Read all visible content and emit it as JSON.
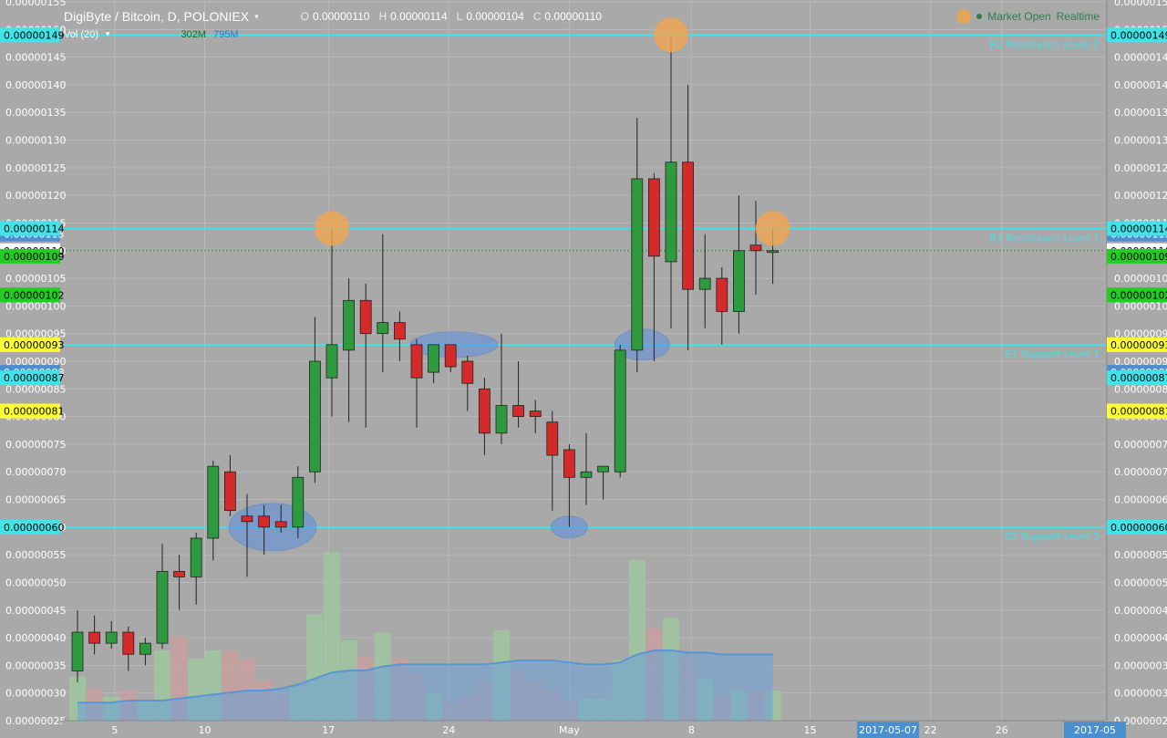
{
  "header": {
    "symbol": "DigiByte / Bitcoin, D, POLONIEX",
    "open_label": "O",
    "open": "0.00000110",
    "high_label": "H",
    "high": "0.00000114",
    "low_label": "L",
    "low": "0.00000104",
    "close_label": "C",
    "close": "0.00000110",
    "volume_label": "Vol (20)",
    "volume_value": "302M",
    "volume_ma": "795M",
    "market_status": "Market Open",
    "realtime": "Realtime"
  },
  "colors": {
    "background": "#a9a9a9",
    "up": "#2d9a3e",
    "down": "#d42a2a",
    "level_line": "#3fe3e8",
    "highlight_orange": "#f0a550",
    "highlight_blue": "#5b8fe0"
  },
  "chart_data": {
    "type": "candlestick",
    "y_range": [
      2.5e-07,
      1.55e-06
    ],
    "y_ticks": [
      "0.00000155",
      "0.00000150",
      "0.00000145",
      "0.00000140",
      "0.00000135",
      "0.00000130",
      "0.00000125",
      "0.00000120",
      "0.00000115",
      "0.00000110",
      "0.00000105",
      "0.00000100",
      "0.00000095",
      "0.00000090",
      "0.00000085",
      "0.00000080",
      "0.00000075",
      "0.00000070",
      "0.00000065",
      "0.00000060",
      "0.00000055",
      "0.00000050",
      "0.00000045",
      "0.00000040",
      "0.00000035",
      "0.00000030",
      "0.00000025"
    ],
    "x_labels": [
      {
        "label": "5",
        "index": 2.2
      },
      {
        "label": "10",
        "index": 7.5
      },
      {
        "label": "17",
        "index": 14.8
      },
      {
        "label": "24",
        "index": 21.9
      },
      {
        "label": "May",
        "index": 29.0
      },
      {
        "label": "8",
        "index": 36.2
      },
      {
        "label": "15",
        "index": 43.2
      },
      {
        "label": "2017-05-07",
        "index": 47.8
      },
      {
        "label": "22",
        "index": 50.3
      },
      {
        "label": "26",
        "index": 54.5
      },
      {
        "label": "2017-05",
        "index": 60.0
      }
    ],
    "candles": [
      {
        "o": 3.4e-07,
        "h": 4.5e-07,
        "l": 3.2e-07,
        "c": 4.1e-07
      },
      {
        "o": 4.1e-07,
        "h": 4.4e-07,
        "l": 3.7e-07,
        "c": 3.9e-07
      },
      {
        "o": 3.9e-07,
        "h": 4.3e-07,
        "l": 3.8e-07,
        "c": 4.1e-07
      },
      {
        "o": 4.1e-07,
        "h": 4.2e-07,
        "l": 3.4e-07,
        "c": 3.7e-07
      },
      {
        "o": 3.7e-07,
        "h": 4e-07,
        "l": 3.5e-07,
        "c": 3.9e-07
      },
      {
        "o": 3.9e-07,
        "h": 5.7e-07,
        "l": 3.8e-07,
        "c": 5.2e-07
      },
      {
        "o": 5.2e-07,
        "h": 5.5e-07,
        "l": 4.5e-07,
        "c": 5.1e-07
      },
      {
        "o": 5.1e-07,
        "h": 5.9e-07,
        "l": 4.6e-07,
        "c": 5.8e-07
      },
      {
        "o": 5.8e-07,
        "h": 7.2e-07,
        "l": 5.4e-07,
        "c": 7.1e-07
      },
      {
        "o": 7e-07,
        "h": 7.3e-07,
        "l": 6.2e-07,
        "c": 6.3e-07
      },
      {
        "o": 6.2e-07,
        "h": 6.6e-07,
        "l": 5.1e-07,
        "c": 6.1e-07
      },
      {
        "o": 6.2e-07,
        "h": 6.4e-07,
        "l": 5.5e-07,
        "c": 6e-07
      },
      {
        "o": 6.1e-07,
        "h": 6.4e-07,
        "l": 5.9e-07,
        "c": 6e-07
      },
      {
        "o": 6e-07,
        "h": 7.1e-07,
        "l": 5.8e-07,
        "c": 6.9e-07
      },
      {
        "o": 7e-07,
        "h": 9.8e-07,
        "l": 6.8e-07,
        "c": 9e-07
      },
      {
        "o": 8.7e-07,
        "h": 1.14e-06,
        "l": 8e-07,
        "c": 9.3e-07
      },
      {
        "o": 9.2e-07,
        "h": 1.05e-06,
        "l": 7.9e-07,
        "c": 1.01e-06
      },
      {
        "o": 1.01e-06,
        "h": 1.04e-06,
        "l": 7.8e-07,
        "c": 9.5e-07
      },
      {
        "o": 9.5e-07,
        "h": 1.13e-06,
        "l": 8.8e-07,
        "c": 9.7e-07
      },
      {
        "o": 9.7e-07,
        "h": 9.9e-07,
        "l": 9e-07,
        "c": 9.4e-07
      },
      {
        "o": 9.3e-07,
        "h": 9.4e-07,
        "l": 7.8e-07,
        "c": 8.7e-07
      },
      {
        "o": 8.8e-07,
        "h": 9.3e-07,
        "l": 8.6e-07,
        "c": 9.3e-07
      },
      {
        "o": 9.3e-07,
        "h": 9.3e-07,
        "l": 8.8e-07,
        "c": 8.9e-07
      },
      {
        "o": 9e-07,
        "h": 9.1e-07,
        "l": 8.1e-07,
        "c": 8.6e-07
      },
      {
        "o": 8.5e-07,
        "h": 8.7e-07,
        "l": 7.3e-07,
        "c": 7.7e-07
      },
      {
        "o": 7.7e-07,
        "h": 9.5e-07,
        "l": 7.5e-07,
        "c": 8.2e-07
      },
      {
        "o": 8.2e-07,
        "h": 9e-07,
        "l": 7.8e-07,
        "c": 8e-07
      },
      {
        "o": 8.1e-07,
        "h": 8.3e-07,
        "l": 7.7e-07,
        "c": 8e-07
      },
      {
        "o": 7.9e-07,
        "h": 8.1e-07,
        "l": 6.3e-07,
        "c": 7.3e-07
      },
      {
        "o": 7.4e-07,
        "h": 7.5e-07,
        "l": 6e-07,
        "c": 6.9e-07
      },
      {
        "o": 6.9e-07,
        "h": 7.7e-07,
        "l": 6.4e-07,
        "c": 7e-07
      },
      {
        "o": 7e-07,
        "h": 7.1e-07,
        "l": 6.5e-07,
        "c": 7.1e-07
      },
      {
        "o": 7e-07,
        "h": 9.3e-07,
        "l": 6.9e-07,
        "c": 9.2e-07
      },
      {
        "o": 9.2e-07,
        "h": 1.34e-06,
        "l": 8.8e-07,
        "c": 1.23e-06
      },
      {
        "o": 1.23e-06,
        "h": 1.24e-06,
        "l": 9e-07,
        "c": 1.09e-06
      },
      {
        "o": 1.08e-06,
        "h": 1.49e-06,
        "l": 9.6e-07,
        "c": 1.26e-06
      },
      {
        "o": 1.26e-06,
        "h": 1.4e-06,
        "l": 9.2e-07,
        "c": 1.03e-06
      },
      {
        "o": 1.03e-06,
        "h": 1.13e-06,
        "l": 9.6e-07,
        "c": 1.05e-06
      },
      {
        "o": 1.05e-06,
        "h": 1.07e-06,
        "l": 9.3e-07,
        "c": 9.9e-07
      },
      {
        "o": 9.9e-07,
        "h": 1.2e-06,
        "l": 9.5e-07,
        "c": 1.1e-06
      },
      {
        "o": 1.11e-06,
        "h": 1.19e-06,
        "l": 1.02e-06,
        "c": 1.1e-06
      },
      {
        "o": 1.1e-06,
        "h": 1.14e-06,
        "l": 1.04e-06,
        "c": 1.1e-06
      }
    ],
    "volume_heights": [
      0.22,
      0.16,
      0.12,
      0.15,
      0.1,
      0.35,
      0.42,
      0.31,
      0.35,
      0.35,
      0.31,
      0.2,
      0.13,
      0.17,
      0.53,
      0.84,
      0.4,
      0.32,
      0.44,
      0.31,
      0.24,
      0.14,
      0.09,
      0.12,
      0.19,
      0.45,
      0.25,
      0.2,
      0.16,
      0.1,
      0.11,
      0.11,
      0.3,
      0.8,
      0.46,
      0.51,
      0.32,
      0.21,
      0.12,
      0.15,
      0.15,
      0.15
    ],
    "volume_ma_heights": [
      0.09,
      0.09,
      0.09,
      0.1,
      0.1,
      0.1,
      0.11,
      0.12,
      0.13,
      0.14,
      0.15,
      0.15,
      0.16,
      0.18,
      0.21,
      0.24,
      0.25,
      0.25,
      0.27,
      0.28,
      0.28,
      0.28,
      0.28,
      0.28,
      0.28,
      0.29,
      0.3,
      0.3,
      0.3,
      0.29,
      0.28,
      0.28,
      0.29,
      0.33,
      0.35,
      0.35,
      0.34,
      0.34,
      0.33,
      0.33,
      0.33,
      0.33
    ],
    "horizontal_levels": [
      {
        "value": 1.49e-06,
        "label": "R2 Resistance Level 2"
      },
      {
        "value": 1.14e-06,
        "label": "R1 Resistance Level 1"
      },
      {
        "value": 9.3e-07,
        "label": "S1 Support Level 1"
      },
      {
        "value": 6e-07,
        "label": "S2 Support Level 2"
      }
    ],
    "current_price_line": 1.1e-06,
    "left_badges": [
      {
        "text": "0.00000149",
        "value": 1.49e-06,
        "bg": "#3fe3e8",
        "fg": "#000000"
      },
      {
        "text": "0.00000113",
        "value": 1.13e-06,
        "bg": "#4a8fd0",
        "fg": "#ffffff"
      },
      {
        "text": "0.00000114",
        "value": 1.14e-06,
        "bg": "#3fe3e8",
        "fg": "#000000"
      },
      {
        "text": "0.00000110",
        "value": 1.1e-06,
        "bg": "#ffffff",
        "fg": "#000000"
      },
      {
        "text": "0.00000109",
        "value": 1.09e-06,
        "bg": "#22cc22",
        "fg": "#000000"
      },
      {
        "text": "0.00000102",
        "value": 1.02e-06,
        "bg": "#22cc22",
        "fg": "#000000"
      },
      {
        "text": "0.00000093",
        "value": 9.3e-07,
        "bg": "#ffff33",
        "fg": "#000000"
      },
      {
        "text": "0.00000088",
        "value": 8.8e-07,
        "bg": "#4a8fd0",
        "fg": "#ffffff"
      },
      {
        "text": "0.00000087",
        "value": 8.7e-07,
        "bg": "#3fe3e8",
        "fg": "#000000"
      },
      {
        "text": "0.00000081",
        "value": 8.1e-07,
        "bg": "#ffff33",
        "fg": "#000000"
      },
      {
        "text": "0.00000060",
        "value": 6e-07,
        "bg": "#3fe3e8",
        "fg": "#000000"
      }
    ],
    "markers": [
      {
        "shape": "orange-circle",
        "index": 35,
        "value": 1.49e-06
      },
      {
        "shape": "orange-circle",
        "index": 15,
        "value": 1.14e-06
      },
      {
        "shape": "orange-circle",
        "index": 41,
        "value": 1.14e-06
      },
      {
        "shape": "blue-ellipse",
        "index": 11.5,
        "value": 6e-07,
        "rx": 48,
        "ry": 26
      },
      {
        "shape": "blue-ellipse",
        "index": 22.2,
        "value": 9.3e-07,
        "rx": 48,
        "ry": 14
      },
      {
        "shape": "blue-ellipse",
        "index": 29.0,
        "value": 6e-07,
        "rx": 20,
        "ry": 12
      },
      {
        "shape": "blue-ellipse",
        "index": 33.3,
        "value": 9.3e-07,
        "rx": 30,
        "ry": 17
      }
    ]
  }
}
